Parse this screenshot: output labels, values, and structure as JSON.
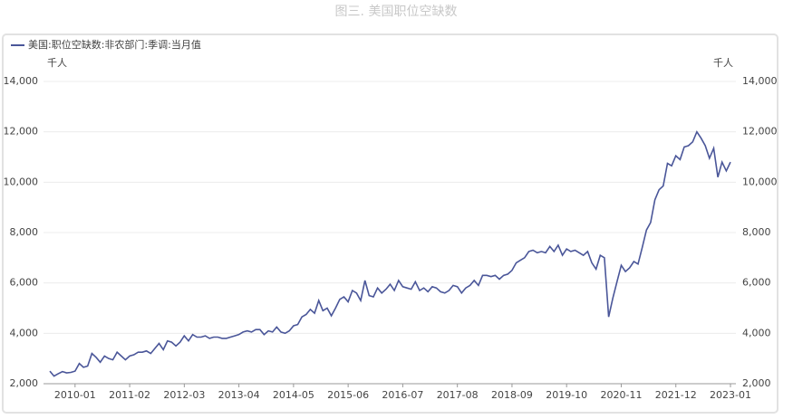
{
  "chart_data": {
    "type": "line",
    "title": "图三. 美国职位空缺数",
    "y_unit": "千人",
    "y2_unit": "千人",
    "x": [
      "2009-07",
      "2009-08",
      "2009-09",
      "2009-10",
      "2009-11",
      "2009-12",
      "2010-01",
      "2010-02",
      "2010-03",
      "2010-04",
      "2010-05",
      "2010-06",
      "2010-07",
      "2010-08",
      "2010-09",
      "2010-10",
      "2010-11",
      "2010-12",
      "2011-01",
      "2011-02",
      "2011-03",
      "2011-04",
      "2011-05",
      "2011-06",
      "2011-07",
      "2011-08",
      "2011-09",
      "2011-10",
      "2011-11",
      "2011-12",
      "2012-01",
      "2012-02",
      "2012-03",
      "2012-04",
      "2012-05",
      "2012-06",
      "2012-07",
      "2012-08",
      "2012-09",
      "2012-10",
      "2012-11",
      "2012-12",
      "2013-01",
      "2013-02",
      "2013-03",
      "2013-04",
      "2013-05",
      "2013-06",
      "2013-07",
      "2013-08",
      "2013-09",
      "2013-10",
      "2013-11",
      "2013-12",
      "2014-01",
      "2014-02",
      "2014-03",
      "2014-04",
      "2014-05",
      "2014-06",
      "2014-07",
      "2014-08",
      "2014-09",
      "2014-10",
      "2014-11",
      "2014-12",
      "2015-01",
      "2015-02",
      "2015-03",
      "2015-04",
      "2015-05",
      "2015-06",
      "2015-07",
      "2015-08",
      "2015-09",
      "2015-10",
      "2015-11",
      "2015-12",
      "2016-01",
      "2016-02",
      "2016-03",
      "2016-04",
      "2016-05",
      "2016-06",
      "2016-07",
      "2016-08",
      "2016-09",
      "2016-10",
      "2016-11",
      "2016-12",
      "2017-01",
      "2017-02",
      "2017-03",
      "2017-04",
      "2017-05",
      "2017-06",
      "2017-07",
      "2017-08",
      "2017-09",
      "2017-10",
      "2017-11",
      "2017-12",
      "2018-01",
      "2018-02",
      "2018-03",
      "2018-04",
      "2018-05",
      "2018-06",
      "2018-07",
      "2018-08",
      "2018-09",
      "2018-10",
      "2018-11",
      "2018-12",
      "2019-01",
      "2019-02",
      "2019-03",
      "2019-04",
      "2019-05",
      "2019-06",
      "2019-07",
      "2019-08",
      "2019-09",
      "2019-10",
      "2019-11",
      "2019-12",
      "2020-01",
      "2020-02",
      "2020-03",
      "2020-04",
      "2020-05",
      "2020-06",
      "2020-07",
      "2020-08",
      "2020-09",
      "2020-10",
      "2020-11",
      "2020-12",
      "2021-01",
      "2021-02",
      "2021-03",
      "2021-04",
      "2021-05",
      "2021-06",
      "2021-07",
      "2021-08",
      "2021-09",
      "2021-10",
      "2021-11",
      "2021-12",
      "2022-01",
      "2022-02",
      "2022-03",
      "2022-04",
      "2022-05",
      "2022-06",
      "2022-07",
      "2022-08",
      "2022-09",
      "2022-10",
      "2022-11",
      "2022-12",
      "2023-01"
    ],
    "series": [
      {
        "name": "美国:职位空缺数:非农部门:季调:当月值",
        "color": "#4a5699",
        "values": [
          2500,
          2300,
          2400,
          2480,
          2430,
          2450,
          2500,
          2800,
          2650,
          2700,
          3200,
          3050,
          2850,
          3100,
          3000,
          2950,
          3250,
          3100,
          2950,
          3100,
          3150,
          3250,
          3250,
          3300,
          3200,
          3400,
          3600,
          3350,
          3700,
          3650,
          3500,
          3650,
          3900,
          3700,
          3950,
          3850,
          3850,
          3900,
          3800,
          3850,
          3850,
          3800,
          3800,
          3850,
          3900,
          3950,
          4050,
          4100,
          4050,
          4150,
          4150,
          3950,
          4100,
          4050,
          4250,
          4050,
          4000,
          4100,
          4300,
          4350,
          4650,
          4750,
          4950,
          4800,
          5300,
          4900,
          5000,
          4700,
          5000,
          5350,
          5450,
          5250,
          5700,
          5600,
          5300,
          6100,
          5500,
          5450,
          5800,
          5600,
          5750,
          5950,
          5700,
          6100,
          5850,
          5800,
          5750,
          6050,
          5700,
          5800,
          5650,
          5850,
          5800,
          5650,
          5600,
          5700,
          5900,
          5850,
          5600,
          5800,
          5900,
          6100,
          5900,
          6300,
          6300,
          6250,
          6300,
          6150,
          6300,
          6350,
          6500,
          6800,
          6900,
          7000,
          7250,
          7300,
          7200,
          7250,
          7200,
          7450,
          7250,
          7500,
          7100,
          7350,
          7250,
          7300,
          7200,
          7100,
          7250,
          6800,
          6550,
          7100,
          7000,
          4650,
          5400,
          6050,
          6700,
          6450,
          6600,
          6850,
          6750,
          7400,
          8100,
          8400,
          9300,
          9700,
          9850,
          10750,
          10650,
          11050,
          10900,
          11400,
          11450,
          11600,
          12000,
          11750,
          11450,
          10950,
          11350,
          10200,
          10800,
          10450,
          10800
        ]
      }
    ],
    "xticks": [
      "2010-01",
      "2011-02",
      "2012-03",
      "2013-04",
      "2014-05",
      "2015-06",
      "2016-07",
      "2017-08",
      "2018-09",
      "2019-10",
      "2020-11",
      "2021-12",
      "2023-01"
    ],
    "ylim": [
      2000,
      14000
    ],
    "yticks": [
      {
        "value": 2000,
        "label": "2,000"
      },
      {
        "value": 4000,
        "label": "4,000"
      },
      {
        "value": 6000,
        "label": "6,000"
      },
      {
        "value": 8000,
        "label": "8,000"
      },
      {
        "value": 10000,
        "label": "10,000"
      },
      {
        "value": 12000,
        "label": "12,000"
      },
      {
        "value": 14000,
        "label": "14,000"
      }
    ],
    "y2lim": [
      2000,
      14000
    ],
    "y2ticks": [
      {
        "value": 2000,
        "label": "2,000"
      },
      {
        "value": 4000,
        "label": "4,000"
      },
      {
        "value": 6000,
        "label": "6,000"
      },
      {
        "value": 8000,
        "label": "8,000"
      },
      {
        "value": 10000,
        "label": "10,000"
      },
      {
        "value": 12000,
        "label": "12,000"
      },
      {
        "value": 14000,
        "label": "14,000"
      }
    ],
    "grid": true
  }
}
